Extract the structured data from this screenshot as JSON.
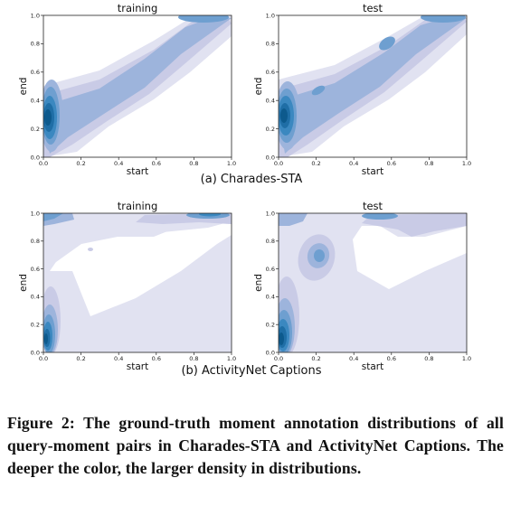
{
  "colors": {
    "light": "#e1e2f1",
    "light2": "#c9cbe6",
    "mid": "#9db4dc",
    "mid2": "#6e9fd0",
    "deep": "#3b88c0",
    "deeper": "#1f6ea6",
    "deepest": "#0d5a8d"
  },
  "tick_labels": [
    "0.0",
    "0.2",
    "0.4",
    "0.6",
    "0.8",
    "1.0"
  ],
  "panels": [
    {
      "id": "charades-training",
      "title": "training",
      "xlabel": "start",
      "ylabel": "end"
    },
    {
      "id": "charades-test",
      "title": "test",
      "xlabel": "start",
      "ylabel": "end"
    },
    {
      "id": "activitynet-training",
      "title": "training",
      "xlabel": "start",
      "ylabel": "end"
    },
    {
      "id": "activitynet-test",
      "title": "test",
      "xlabel": "start",
      "ylabel": "end"
    }
  ],
  "subcaptions": {
    "a": "(a) Charades-STA",
    "b": "(b) ActivityNet Captions"
  },
  "caption": "Figure 2: The ground-truth moment annotation distributions of all query-moment pairs in Charades-STA and ActivityNet Captions. The deeper the color, the larger density in distributions.",
  "chart_data": [
    {
      "type": "heatmap",
      "title": "training",
      "xlabel": "start",
      "ylabel": "end",
      "xlim": [
        0,
        1
      ],
      "ylim": [
        0,
        1
      ],
      "grid": false,
      "density_peaks": [
        {
          "x": 0.05,
          "y": 0.3,
          "level": "highest"
        },
        {
          "x": 0.75,
          "y": 0.98,
          "level": "medium"
        }
      ]
    },
    {
      "type": "heatmap",
      "title": "test",
      "xlabel": "start",
      "ylabel": "end",
      "xlim": [
        0,
        1
      ],
      "ylim": [
        0,
        1
      ],
      "grid": false,
      "density_peaks": [
        {
          "x": 0.05,
          "y": 0.3,
          "level": "highest"
        },
        {
          "x": 0.75,
          "y": 0.98,
          "level": "medium"
        }
      ]
    },
    {
      "type": "heatmap",
      "title": "training",
      "xlabel": "start",
      "ylabel": "end",
      "xlim": [
        0,
        1
      ],
      "ylim": [
        0,
        1
      ],
      "grid": false,
      "density_peaks": [
        {
          "x": 0.04,
          "y": 0.1,
          "level": "highest"
        },
        {
          "x": 0.9,
          "y": 0.99,
          "level": "high"
        },
        {
          "x": 0.05,
          "y": 0.99,
          "level": "medium"
        }
      ]
    },
    {
      "type": "heatmap",
      "title": "test",
      "xlabel": "start",
      "ylabel": "end",
      "xlim": [
        0,
        1
      ],
      "ylim": [
        0,
        1
      ],
      "grid": false,
      "density_peaks": [
        {
          "x": 0.04,
          "y": 0.1,
          "level": "highest"
        },
        {
          "x": 0.55,
          "y": 0.99,
          "level": "high"
        },
        {
          "x": 0.25,
          "y": 0.65,
          "level": "medium"
        }
      ]
    }
  ]
}
